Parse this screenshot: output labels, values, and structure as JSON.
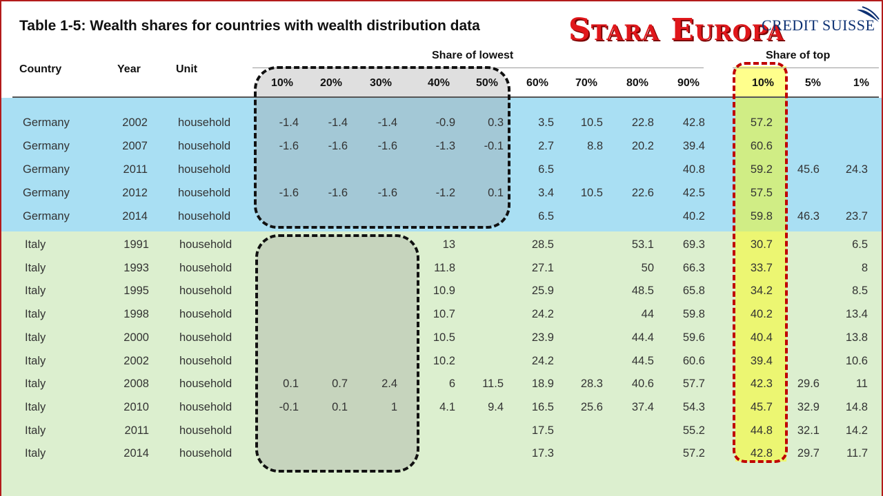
{
  "title": "Table 1-5: Wealth shares for countries with wealth distribution data",
  "overlay_title": "Stara Europa",
  "logo_text": "CREDIT SUISSE",
  "colors": {
    "germany_band": "#a9dff3",
    "italy_band": "#dcefcf",
    "overlay": "#e0171b",
    "logo": "#0d3173",
    "highlight": "#ffff00"
  },
  "headers": {
    "country": "Country",
    "year": "Year",
    "unit": "Unit",
    "share_lowest": "Share of lowest",
    "share_top": "Share of top",
    "lowest_cols": [
      "10%",
      "20%",
      "30%",
      "40%",
      "50%",
      "60%",
      "70%",
      "80%",
      "90%"
    ],
    "top_cols": [
      "10%",
      "5%",
      "1%"
    ]
  },
  "rows": [
    {
      "country": "Germany",
      "year": "2002",
      "unit": "household",
      "v": [
        "-1.4",
        "-1.4",
        "-1.4",
        "-0.9",
        "0.3",
        "3.5",
        "10.5",
        "22.8",
        "42.8"
      ],
      "t": [
        "57.2",
        "",
        ""
      ]
    },
    {
      "country": "Germany",
      "year": "2007",
      "unit": "household",
      "v": [
        "-1.6",
        "-1.6",
        "-1.6",
        "-1.3",
        "-0.1",
        "2.7",
        "8.8",
        "20.2",
        "39.4"
      ],
      "t": [
        "60.6",
        "",
        ""
      ]
    },
    {
      "country": "Germany",
      "year": "2011",
      "unit": "household",
      "v": [
        "",
        "",
        "",
        "",
        "",
        "6.5",
        "",
        "",
        "40.8"
      ],
      "t": [
        "59.2",
        "45.6",
        "24.3"
      ]
    },
    {
      "country": "Germany",
      "year": "2012",
      "unit": "household",
      "v": [
        "-1.6",
        "-1.6",
        "-1.6",
        "-1.2",
        "0.1",
        "3.4",
        "10.5",
        "22.6",
        "42.5"
      ],
      "t": [
        "57.5",
        "",
        ""
      ]
    },
    {
      "country": "Germany",
      "year": "2014",
      "unit": "household",
      "v": [
        "",
        "",
        "",
        "",
        "",
        "6.5",
        "",
        "",
        "40.2"
      ],
      "t": [
        "59.8",
        "46.3",
        "23.7"
      ]
    },
    {
      "country": "Italy",
      "year": "1991",
      "unit": "household",
      "v": [
        "",
        "",
        "",
        "13",
        "",
        "28.5",
        "",
        "53.1",
        "69.3"
      ],
      "t": [
        "30.7",
        "",
        "6.5"
      ]
    },
    {
      "country": "Italy",
      "year": "1993",
      "unit": "household",
      "v": [
        "",
        "",
        "",
        "11.8",
        "",
        "27.1",
        "",
        "50",
        "66.3"
      ],
      "t": [
        "33.7",
        "",
        "8"
      ]
    },
    {
      "country": "Italy",
      "year": "1995",
      "unit": "household",
      "v": [
        "",
        "",
        "",
        "10.9",
        "",
        "25.9",
        "",
        "48.5",
        "65.8"
      ],
      "t": [
        "34.2",
        "",
        "8.5"
      ]
    },
    {
      "country": "Italy",
      "year": "1998",
      "unit": "household",
      "v": [
        "",
        "",
        "",
        "10.7",
        "",
        "24.2",
        "",
        "44",
        "59.8"
      ],
      "t": [
        "40.2",
        "",
        "13.4"
      ]
    },
    {
      "country": "Italy",
      "year": "2000",
      "unit": "household",
      "v": [
        "",
        "",
        "",
        "10.5",
        "",
        "23.9",
        "",
        "44.4",
        "59.6"
      ],
      "t": [
        "40.4",
        "",
        "13.8"
      ]
    },
    {
      "country": "Italy",
      "year": "2002",
      "unit": "household",
      "v": [
        "",
        "",
        "",
        "10.2",
        "",
        "24.2",
        "",
        "44.5",
        "60.6"
      ],
      "t": [
        "39.4",
        "",
        "10.6"
      ]
    },
    {
      "country": "Italy",
      "year": "2008",
      "unit": "household",
      "v": [
        "0.1",
        "0.7",
        "2.4",
        "6",
        "11.5",
        "18.9",
        "28.3",
        "40.6",
        "57.7"
      ],
      "t": [
        "42.3",
        "29.6",
        "11"
      ]
    },
    {
      "country": "Italy",
      "year": "2010",
      "unit": "household",
      "v": [
        "-0.1",
        "0.1",
        "1",
        "4.1",
        "9.4",
        "16.5",
        "25.6",
        "37.4",
        "54.3"
      ],
      "t": [
        "45.7",
        "32.9",
        "14.8"
      ]
    },
    {
      "country": "Italy",
      "year": "2011",
      "unit": "household",
      "v": [
        "",
        "",
        "",
        "",
        "",
        "17.5",
        "",
        "",
        "55.2"
      ],
      "t": [
        "44.8",
        "32.1",
        "14.2"
      ]
    },
    {
      "country": "Italy",
      "year": "2014",
      "unit": "household",
      "v": [
        "",
        "",
        "",
        "",
        "",
        "17.3",
        "",
        "",
        "57.2"
      ],
      "t": [
        "42.8",
        "29.7",
        "11.7"
      ]
    }
  ]
}
